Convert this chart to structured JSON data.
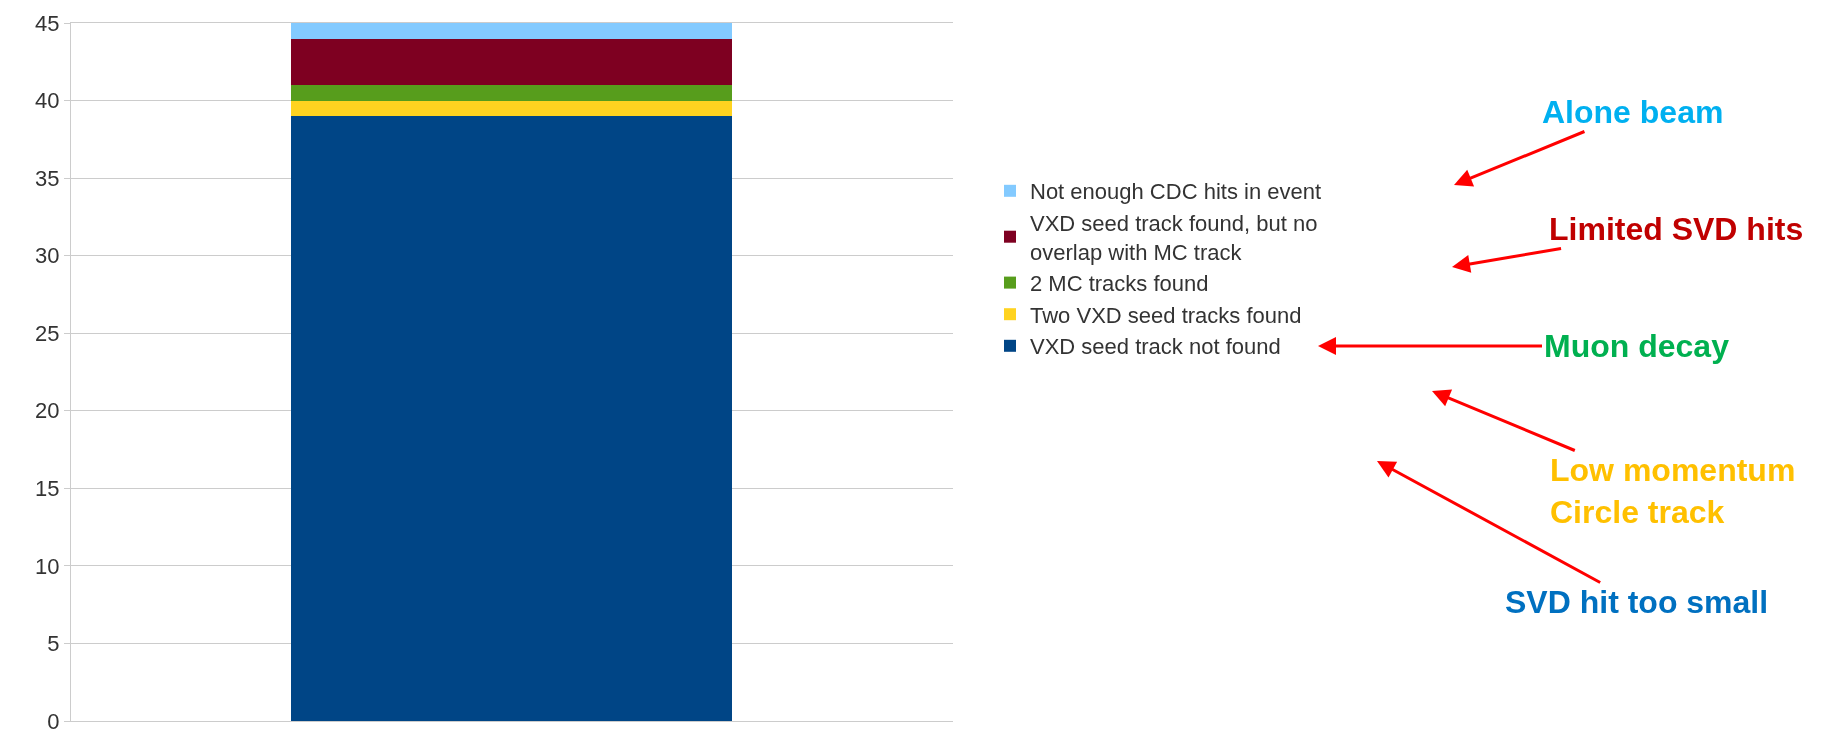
{
  "chart_data": {
    "type": "bar",
    "stacked": true,
    "categories": [
      null
    ],
    "series": [
      {
        "name": "VXD seed track not found",
        "color": "#004586",
        "values": [
          39
        ]
      },
      {
        "name": "Two VXD seed tracks found",
        "color": "#ffd320",
        "values": [
          1
        ]
      },
      {
        "name": "2 MC tracks found",
        "color": "#579d1c",
        "values": [
          1
        ]
      },
      {
        "name": "VXD seed track found, but no\noverlap with MC track",
        "color": "#7e0021",
        "values": [
          3
        ]
      },
      {
        "name": "Not enough CDC hits in event",
        "color": "#83caff",
        "values": [
          1
        ]
      }
    ],
    "ylim": [
      0,
      45
    ],
    "yticks": [
      0,
      5,
      10,
      15,
      20,
      25,
      30,
      35,
      40,
      45
    ],
    "grid": "y",
    "legend": "right",
    "annotations": [
      "Alone beam",
      "Limited SVD hits",
      "Muon decay",
      "Low momentum\nCircle track",
      "SVD hit too small"
    ]
  }
}
